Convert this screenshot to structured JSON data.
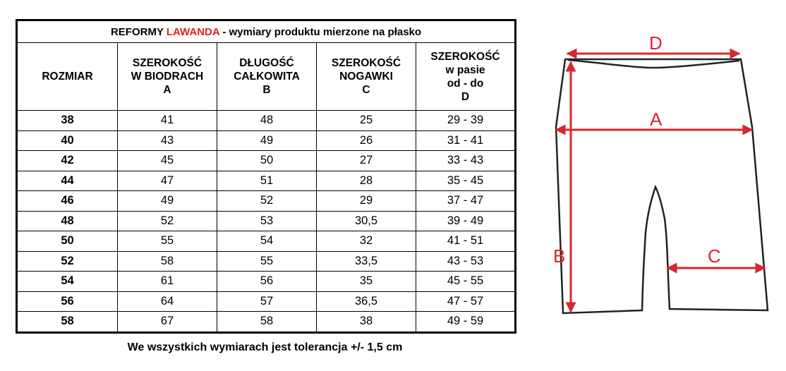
{
  "table": {
    "title_prefix": "REFORMY ",
    "title_brand": "LAWANDA",
    "title_suffix": " - wymiary produktu mierzone na płasko",
    "brand_color": "#e0201f",
    "headers": [
      {
        "lines": [
          "ROZMIAR"
        ]
      },
      {
        "lines": [
          "SZEROKOŚĆ",
          "W BIODRACH",
          "A"
        ]
      },
      {
        "lines": [
          "DŁUGOŚĆ",
          "CAŁKOWITA",
          "B"
        ]
      },
      {
        "lines": [
          "SZEROKOŚĆ",
          "NOGAWKI",
          "C"
        ]
      },
      {
        "lines": [
          "SZEROKOŚĆ",
          "w pasie",
          "od - do",
          "D"
        ]
      }
    ],
    "rows": [
      [
        "38",
        "41",
        "48",
        "25",
        "29 - 39"
      ],
      [
        "40",
        "43",
        "49",
        "26",
        "31 - 41"
      ],
      [
        "42",
        "45",
        "50",
        "27",
        "33 - 43"
      ],
      [
        "44",
        "47",
        "51",
        "28",
        "35 - 45"
      ],
      [
        "46",
        "49",
        "52",
        "29",
        "37 - 47"
      ],
      [
        "48",
        "52",
        "53",
        "30,5",
        "39 - 49"
      ],
      [
        "50",
        "55",
        "54",
        "32",
        "41 - 51"
      ],
      [
        "52",
        "58",
        "55",
        "33,5",
        "43 - 53"
      ],
      [
        "54",
        "61",
        "56",
        "35",
        "45 - 55"
      ],
      [
        "56",
        "64",
        "57",
        "36,5",
        "47 - 57"
      ],
      [
        "58",
        "67",
        "58",
        "38",
        "49 - 59"
      ]
    ]
  },
  "note": "We wszystkich wymiarach jest tolerancja +/- 1,5 cm",
  "diagram": {
    "labels": {
      "A": "A",
      "B": "B",
      "C": "C",
      "D": "D"
    },
    "arrow_color": "#d8262e",
    "outline_color": "#222222"
  }
}
